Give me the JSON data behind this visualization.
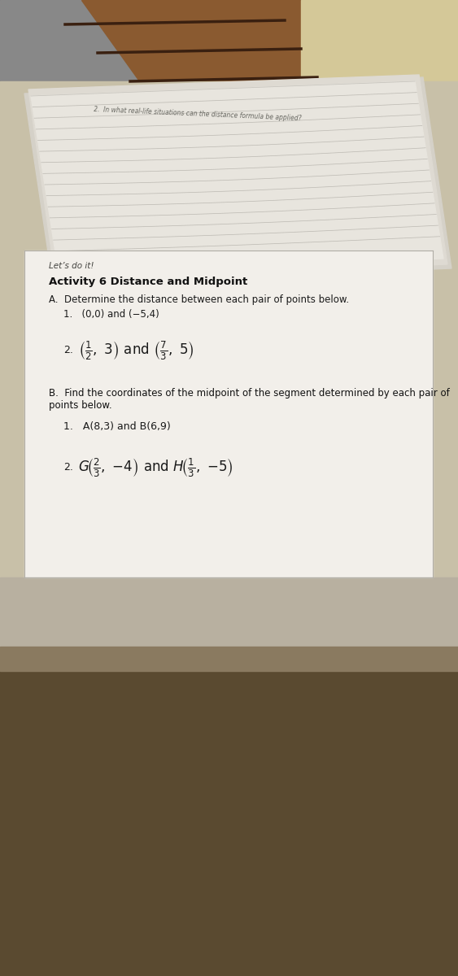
{
  "fig_width": 5.63,
  "fig_height": 12.0,
  "bg_left_color": "#7a7a7a",
  "bg_wood_color": "#7a4a28",
  "bg_cream_right": "#d8cfa8",
  "bg_floor_color": "#6b5a40",
  "paper_upper_color": "#e8e5de",
  "paper_main_color": "#f2efea",
  "paper_shadow": "#c8c5be",
  "text_dark": "#1a1a1a",
  "text_medium": "#2a2a2a",
  "text_light": "#888880",
  "line_color": "#c5c2bb",
  "title_small": "Let’s do it!",
  "title_bold": "Activity 6 Distance and Midpoint",
  "section_A_text": "A.  Determine the distance between each pair of points below.",
  "item_A1": "1.   (0,0) and (−5,4)",
  "section_B_text": "B.  Find the coordinates of the midpoint of the segment determined by each pair of points below.",
  "item_B1": "1.   A(8,3) and B(6,9)",
  "upper_note1": "2.  In what real-life situations can the distance formula be applied?",
  "num_lines_upper": 14
}
